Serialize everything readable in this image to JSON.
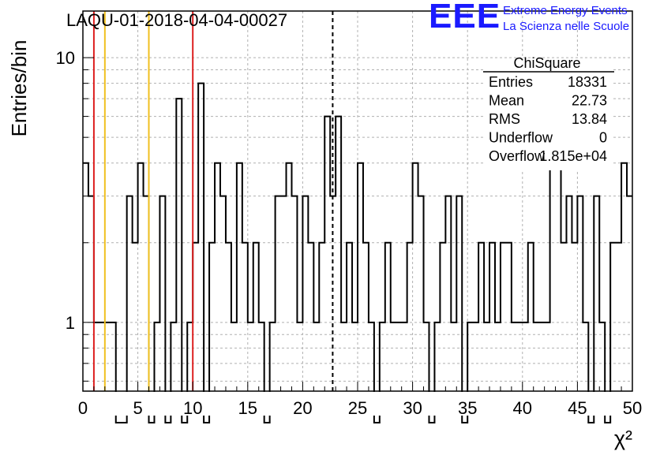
{
  "logo": {
    "text": "EEE",
    "line1": "Extreme Energy Events",
    "line2": "La Scienza nelle Scuole",
    "color": "#1a1aff"
  },
  "stats": {
    "title": "ChiSquare",
    "rows": [
      {
        "label": "Entries",
        "value": "18331"
      },
      {
        "label": "Mean",
        "value": "22.73"
      },
      {
        "label": "RMS",
        "value": "13.84"
      },
      {
        "label": "Underflow",
        "value": "0"
      },
      {
        "label": "Overflow",
        "value": "1.815e+04"
      }
    ]
  },
  "chart_data": {
    "type": "histogram",
    "title": "LAQU-01-2018-04-04-00027",
    "xlabel": "χ²",
    "ylabel": "Entries/bin",
    "xlim": [
      0,
      50
    ],
    "ylim": [
      0.55,
      15
    ],
    "ylog": true,
    "grid": true,
    "xticks": [
      0,
      5,
      10,
      15,
      20,
      25,
      30,
      35,
      40,
      45,
      50
    ],
    "yticks": [
      1,
      10
    ],
    "bin_width": 0.5,
    "counts": [
      4,
      3,
      1,
      1,
      1,
      1,
      0,
      0,
      3,
      2,
      4,
      3,
      0,
      1,
      3,
      0,
      1,
      7,
      0,
      1,
      2,
      8,
      0,
      2,
      4,
      3,
      2,
      1,
      4,
      2,
      1,
      2,
      1,
      0,
      1,
      3,
      3,
      4,
      3,
      1,
      3,
      2,
      1,
      2,
      6,
      3,
      6,
      1,
      2,
      1,
      4,
      2,
      1,
      0,
      1,
      2,
      1,
      1,
      1,
      2,
      4,
      3,
      1,
      0,
      1,
      2,
      3,
      1,
      3,
      0,
      1,
      1,
      2,
      1,
      2,
      1,
      2,
      2,
      1,
      1,
      1,
      2,
      1,
      1,
      1,
      5,
      4,
      2,
      3,
      2,
      3,
      1,
      0,
      3,
      1,
      0,
      2,
      2,
      4,
      3
    ],
    "vlines": [
      {
        "x": 1,
        "color": "#dd2020",
        "style": "solid"
      },
      {
        "x": 2,
        "color": "#f0c020",
        "style": "solid"
      },
      {
        "x": 6,
        "color": "#f0c020",
        "style": "solid"
      },
      {
        "x": 10,
        "color": "#dd2020",
        "style": "solid"
      },
      {
        "x": 22.73,
        "color": "#000000",
        "style": "dashed"
      }
    ]
  }
}
